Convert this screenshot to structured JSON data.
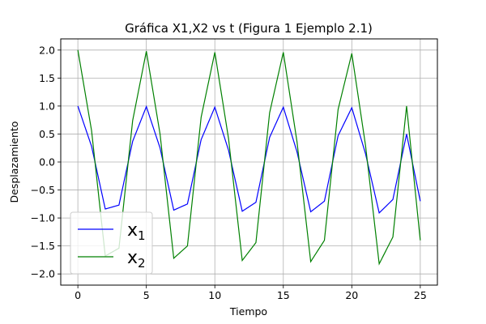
{
  "chart_data": {
    "type": "line",
    "title": "Gráfica X1,X2 vs t (Figura 1 Ejemplo 2.1)",
    "xlabel": "Tiempo",
    "ylabel": "Desplazamiento",
    "xlim": [
      -1.25,
      26.25
    ],
    "ylim": [
      -2.2,
      2.2
    ],
    "xticks": [
      0,
      5,
      10,
      15,
      20,
      25
    ],
    "xtick_labels": [
      "0",
      "5",
      "10",
      "15",
      "20",
      "25"
    ],
    "yticks": [
      2.0,
      1.5,
      1.0,
      0.5,
      0.0,
      -0.5,
      -1.0,
      -1.5,
      -2.0
    ],
    "ytick_labels": [
      "2.0",
      "1.5",
      "1.0",
      "0.5",
      "0.0",
      "−0.5",
      "−1.0",
      "−1.5",
      "−2.0"
    ],
    "grid": true,
    "legend": "lower-left",
    "series": [
      {
        "name": "x1",
        "legend_main": "x",
        "legend_sub": "1",
        "color": "#0000ff",
        "x": [
          0,
          1,
          2,
          3,
          4,
          5,
          6,
          7,
          8,
          9,
          10,
          11,
          12,
          13,
          14,
          15,
          16,
          17,
          18,
          19,
          20,
          21,
          22,
          23,
          24,
          25
        ],
        "y": [
          1.0,
          0.28,
          -0.84,
          -0.77,
          0.37,
          0.99,
          0.25,
          -0.86,
          -0.75,
          0.4,
          0.98,
          0.21,
          -0.88,
          -0.72,
          0.44,
          0.98,
          0.18,
          -0.89,
          -0.7,
          0.47,
          0.97,
          0.15,
          -0.91,
          -0.67,
          0.5,
          -0.7
        ]
      },
      {
        "name": "x2",
        "legend_main": "x",
        "legend_sub": "2",
        "color": "#008000",
        "x": [
          0,
          1,
          2,
          3,
          4,
          5,
          6,
          7,
          8,
          9,
          10,
          11,
          12,
          13,
          14,
          15,
          16,
          17,
          18,
          19,
          20,
          21,
          22,
          23,
          24,
          25
        ],
        "y": [
          2.0,
          0.56,
          -1.68,
          -1.54,
          0.74,
          1.98,
          0.5,
          -1.72,
          -1.5,
          0.8,
          1.96,
          0.42,
          -1.76,
          -1.44,
          0.88,
          1.96,
          0.36,
          -1.78,
          -1.4,
          0.94,
          1.94,
          0.3,
          -1.82,
          -1.34,
          1.0,
          -1.4
        ]
      }
    ]
  }
}
